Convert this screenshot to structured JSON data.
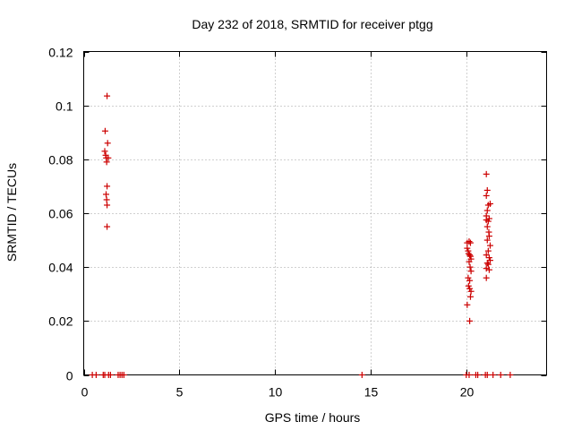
{
  "chart_data": {
    "type": "scatter",
    "title": "Day 232 of 2018, SRMTID for receiver ptgg",
    "xlabel": "GPS time / hours",
    "ylabel": "SRMTID / TECUs",
    "xlim": [
      0,
      24.2
    ],
    "ylim": [
      0,
      0.12
    ],
    "xticks": [
      0,
      5,
      10,
      15,
      20
    ],
    "xtick_labels": [
      "0",
      "5",
      "10",
      "15",
      "20"
    ],
    "yticks": [
      0,
      0.02,
      0.04,
      0.06,
      0.08,
      0.1,
      0.12
    ],
    "ytick_labels": [
      "0",
      "0.02",
      "0.04",
      "0.06",
      "0.08",
      "0.1",
      "0.12"
    ],
    "grid": true,
    "marker": "+",
    "color": "#cc0000",
    "series": [
      {
        "name": "SRMTID",
        "points": [
          [
            1.22,
            0.1035
          ],
          [
            1.12,
            0.0905
          ],
          [
            1.25,
            0.086
          ],
          [
            1.1,
            0.083
          ],
          [
            1.15,
            0.0815
          ],
          [
            1.18,
            0.0805
          ],
          [
            1.28,
            0.0805
          ],
          [
            1.2,
            0.079
          ],
          [
            1.22,
            0.07
          ],
          [
            1.17,
            0.067
          ],
          [
            1.2,
            0.065
          ],
          [
            1.22,
            0.063
          ],
          [
            1.22,
            0.055
          ],
          [
            0.45,
            0.0
          ],
          [
            0.65,
            0.0
          ],
          [
            1.02,
            0.0
          ],
          [
            1.1,
            0.0
          ],
          [
            1.3,
            0.0
          ],
          [
            1.4,
            0.0
          ],
          [
            1.8,
            0.0
          ],
          [
            1.9,
            0.0
          ],
          [
            2.0,
            0.0
          ],
          [
            2.1,
            0.0
          ],
          [
            14.55,
            0.0
          ],
          [
            20.05,
            0.049
          ],
          [
            20.15,
            0.0495
          ],
          [
            20.22,
            0.049
          ],
          [
            20.05,
            0.047
          ],
          [
            20.1,
            0.046
          ],
          [
            20.12,
            0.045
          ],
          [
            20.18,
            0.0445
          ],
          [
            20.22,
            0.044
          ],
          [
            20.25,
            0.043
          ],
          [
            20.15,
            0.042
          ],
          [
            20.2,
            0.04
          ],
          [
            20.25,
            0.0385
          ],
          [
            20.1,
            0.036
          ],
          [
            20.18,
            0.035
          ],
          [
            20.12,
            0.033
          ],
          [
            20.18,
            0.032
          ],
          [
            20.25,
            0.031
          ],
          [
            20.22,
            0.029
          ],
          [
            20.05,
            0.026
          ],
          [
            20.18,
            0.02
          ],
          [
            21.05,
            0.0745
          ],
          [
            21.1,
            0.0685
          ],
          [
            21.05,
            0.0665
          ],
          [
            21.15,
            0.063
          ],
          [
            21.25,
            0.0635
          ],
          [
            21.1,
            0.061
          ],
          [
            21.05,
            0.059
          ],
          [
            21.2,
            0.058
          ],
          [
            21.05,
            0.0575
          ],
          [
            21.15,
            0.057
          ],
          [
            21.1,
            0.055
          ],
          [
            21.18,
            0.053
          ],
          [
            21.2,
            0.0515
          ],
          [
            21.1,
            0.05
          ],
          [
            21.25,
            0.048
          ],
          [
            21.15,
            0.046
          ],
          [
            21.05,
            0.0445
          ],
          [
            21.2,
            0.0435
          ],
          [
            21.25,
            0.0425
          ],
          [
            21.1,
            0.0415
          ],
          [
            21.15,
            0.041
          ],
          [
            21.05,
            0.0395
          ],
          [
            21.2,
            0.039
          ],
          [
            21.05,
            0.036
          ],
          [
            20.0,
            0.0
          ],
          [
            20.15,
            0.0
          ],
          [
            20.5,
            0.0
          ],
          [
            20.6,
            0.0
          ],
          [
            21.0,
            0.0
          ],
          [
            21.1,
            0.0
          ],
          [
            21.4,
            0.0
          ],
          [
            21.8,
            0.0
          ],
          [
            22.3,
            0.0
          ]
        ]
      }
    ]
  }
}
